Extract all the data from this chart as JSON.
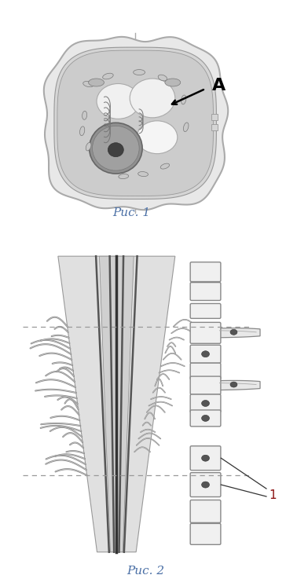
{
  "fig1_caption": "Рис. 1",
  "fig2_caption": "Рис. 2",
  "label_A": "A",
  "label_1": "1",
  "bg_color": "#ffffff",
  "caption_color": "#4a6fa5",
  "dashed_color": "#999999",
  "label1_color": "#8B1010"
}
